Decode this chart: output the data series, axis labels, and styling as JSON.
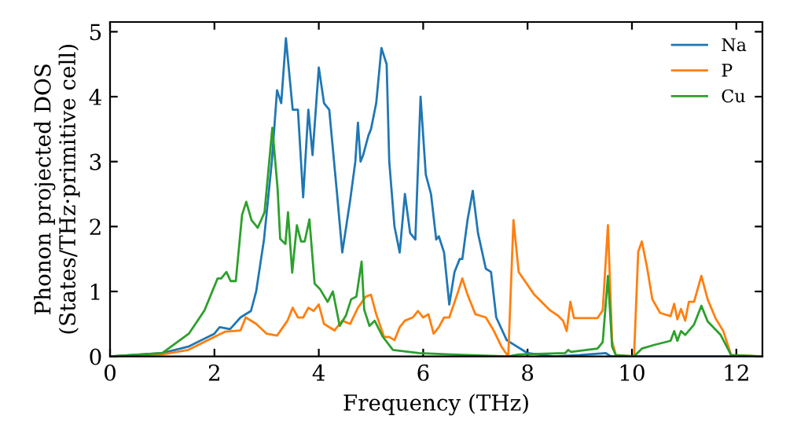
{
  "chart_data": {
    "type": "line",
    "xlabel": "Frequency (THz)",
    "ylabel": "Phonon projected DOS\n(States/THz·primitive cell)",
    "xlim": [
      0,
      12.5
    ],
    "ylim": [
      0,
      5.15
    ],
    "xticks": [
      0,
      2,
      4,
      6,
      8,
      10,
      12
    ],
    "yticks": [
      0,
      1,
      2,
      3,
      4,
      5
    ],
    "grid": false,
    "legend": "top right",
    "marker": "none",
    "line_style": "solid",
    "series": [
      {
        "name": "Na",
        "color": "#1f77b4",
        "x": [
          0,
          1.0,
          1.5,
          2.0,
          2.1,
          2.3,
          2.5,
          2.7,
          2.8,
          2.95,
          3.1,
          3.2,
          3.28,
          3.37,
          3.5,
          3.6,
          3.7,
          3.8,
          3.88,
          4.0,
          4.1,
          4.2,
          4.35,
          4.45,
          4.6,
          4.7,
          4.75,
          4.8,
          4.85,
          4.95,
          5.0,
          5.1,
          5.2,
          5.3,
          5.35,
          5.45,
          5.55,
          5.65,
          5.75,
          5.85,
          5.95,
          6.05,
          6.15,
          6.25,
          6.3,
          6.4,
          6.5,
          6.6,
          6.7,
          6.75,
          6.85,
          6.95,
          7.05,
          7.2,
          7.3,
          7.4,
          7.6,
          8.0,
          8.5,
          9.0,
          9.5,
          9.6,
          12.5
        ],
        "values": [
          0,
          0.05,
          0.15,
          0.35,
          0.45,
          0.42,
          0.6,
          0.7,
          1.0,
          1.8,
          3.0,
          4.1,
          3.9,
          4.9,
          3.8,
          3.8,
          2.45,
          3.8,
          3.1,
          4.45,
          3.9,
          3.8,
          2.5,
          1.6,
          2.4,
          3.0,
          3.6,
          3.0,
          3.1,
          3.4,
          3.5,
          3.9,
          4.75,
          4.5,
          3.0,
          2.0,
          1.6,
          2.5,
          1.9,
          1.8,
          4.0,
          2.8,
          2.5,
          1.8,
          1.85,
          1.6,
          0.8,
          1.3,
          1.5,
          1.5,
          2.1,
          2.55,
          1.9,
          1.35,
          1.3,
          0.6,
          0.25,
          0.05,
          0.0,
          0.02,
          0.05,
          0.0,
          0.0
        ]
      },
      {
        "name": "P",
        "color": "#ff7f0e",
        "x": [
          0,
          1.0,
          1.5,
          2.0,
          2.2,
          2.5,
          2.6,
          2.8,
          3.0,
          3.2,
          3.4,
          3.5,
          3.6,
          3.7,
          3.8,
          3.9,
          4.0,
          4.1,
          4.3,
          4.45,
          4.6,
          4.75,
          4.9,
          5.0,
          5.1,
          5.25,
          5.35,
          5.45,
          5.55,
          5.65,
          5.8,
          5.9,
          6.0,
          6.1,
          6.2,
          6.3,
          6.4,
          6.5,
          6.65,
          6.75,
          6.85,
          7.0,
          7.2,
          7.35,
          7.5,
          7.63,
          7.73,
          7.83,
          8.13,
          8.43,
          8.58,
          8.68,
          8.75,
          8.82,
          8.89,
          9.34,
          9.44,
          9.54,
          9.62,
          9.69,
          10.04,
          10.12,
          10.19,
          10.29,
          10.39,
          10.54,
          10.74,
          10.81,
          10.87,
          10.94,
          11.02,
          11.09,
          11.19,
          11.33,
          11.45,
          11.6,
          11.75,
          11.9,
          12.5
        ],
        "values": [
          0,
          0.03,
          0.1,
          0.3,
          0.38,
          0.4,
          0.6,
          0.5,
          0.35,
          0.32,
          0.55,
          0.75,
          0.6,
          0.6,
          0.75,
          0.7,
          0.8,
          0.5,
          0.4,
          0.55,
          0.5,
          0.75,
          0.92,
          0.95,
          0.65,
          0.3,
          0.3,
          0.25,
          0.45,
          0.55,
          0.6,
          0.7,
          0.6,
          0.65,
          0.35,
          0.45,
          0.6,
          0.6,
          0.95,
          1.2,
          0.95,
          0.65,
          0.6,
          0.4,
          0.15,
          0.0,
          2.1,
          1.3,
          0.95,
          0.71,
          0.63,
          0.55,
          0.39,
          0.84,
          0.59,
          0.59,
          0.71,
          2.02,
          0.23,
          0.02,
          0.0,
          1.61,
          1.77,
          1.37,
          0.88,
          0.67,
          0.62,
          0.81,
          0.57,
          0.73,
          0.55,
          0.84,
          0.84,
          1.24,
          0.88,
          0.59,
          0.39,
          0.02,
          0.0
        ]
      },
      {
        "name": "Cu",
        "color": "#2ca02c",
        "x": [
          0,
          1.0,
          1.51,
          1.81,
          2.06,
          2.13,
          2.23,
          2.31,
          2.41,
          2.53,
          2.61,
          2.71,
          2.83,
          2.96,
          3.11,
          3.21,
          3.26,
          3.36,
          3.41,
          3.49,
          3.58,
          3.66,
          3.73,
          3.82,
          3.92,
          4.02,
          4.17,
          4.27,
          4.4,
          4.52,
          4.62,
          4.72,
          4.82,
          4.87,
          4.97,
          5.07,
          5.22,
          5.42,
          5.92,
          6.52,
          7.63,
          7.83,
          8.72,
          8.78,
          8.83,
          9.34,
          9.44,
          9.54,
          9.62,
          9.69,
          10.04,
          10.19,
          10.44,
          10.74,
          10.81,
          10.87,
          10.94,
          11.02,
          11.19,
          11.33,
          11.45,
          11.7,
          11.9,
          12.5
        ],
        "values": [
          0,
          0.05,
          0.35,
          0.71,
          1.2,
          1.2,
          1.3,
          1.16,
          1.16,
          2.18,
          2.38,
          2.1,
          1.98,
          2.22,
          3.52,
          2.59,
          1.81,
          1.73,
          2.22,
          1.29,
          2.02,
          1.77,
          1.77,
          2.11,
          1.12,
          1.04,
          0.84,
          1.0,
          0.47,
          0.63,
          0.88,
          0.92,
          1.46,
          0.72,
          0.47,
          0.55,
          0.31,
          0.1,
          0.05,
          0.03,
          0.0,
          0.03,
          0.05,
          0.1,
          0.07,
          0.12,
          0.22,
          1.24,
          0.15,
          0.02,
          0.0,
          0.12,
          0.18,
          0.24,
          0.39,
          0.24,
          0.39,
          0.33,
          0.49,
          0.78,
          0.54,
          0.33,
          0.02,
          0.0
        ]
      }
    ]
  }
}
